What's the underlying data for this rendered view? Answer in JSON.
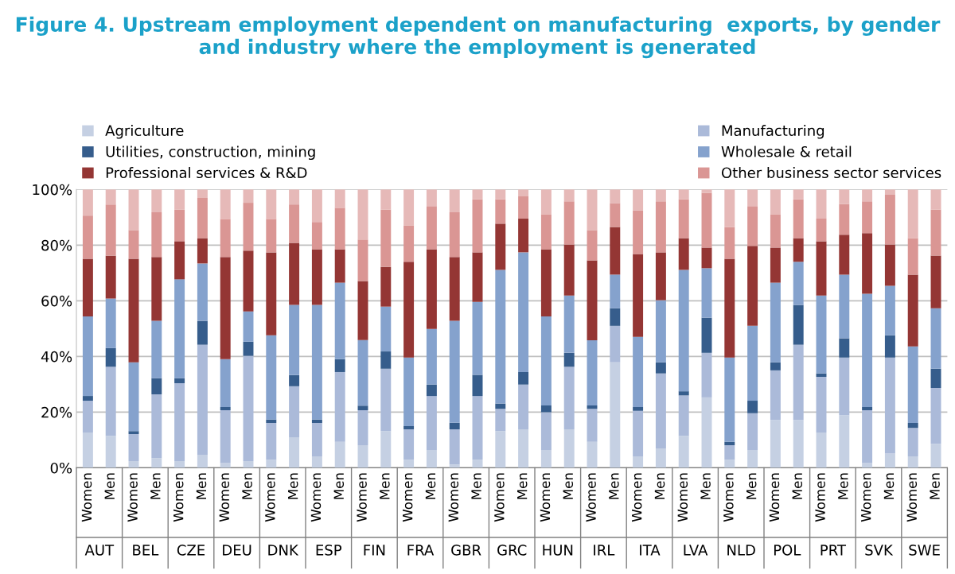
{
  "chart_data": {
    "type": "bar",
    "stacked": true,
    "title": "Figure 4. Upstream employment dependent on manufacturing  exports, by gender and industry where the employment is generated",
    "categories": [
      "Women",
      "Men",
      "Women",
      "Men",
      "Women",
      "Men",
      "Women",
      "Men",
      "Women",
      "Men",
      "Women",
      "Men",
      "Women",
      "Men",
      "Women",
      "Men",
      "Women",
      "Men",
      "Women",
      "Men",
      "Women",
      "Men",
      "Women",
      "Men",
      "Women",
      "Men",
      "Women",
      "Men",
      "Women",
      "Men",
      "Women",
      "Men",
      "Women",
      "Men",
      "Women",
      "Men",
      "Women",
      "Men"
    ],
    "annotations": [
      "AUT",
      "BEL",
      "CZE",
      "DEU",
      "DNK",
      "ESP",
      "FIN",
      "FRA",
      "GBR",
      "GRC",
      "HUN",
      "IRL",
      "ITA",
      "LVA",
      "NLD",
      "POL",
      "PRT",
      "SVK",
      "SWE"
    ],
    "series": [
      {
        "name": "Agriculture",
        "color": "#c5d0e3",
        "values": [
          12.7,
          11.5,
          2.4,
          3.5,
          2.4,
          4.7,
          1.7,
          2.4,
          2.9,
          11.0,
          4.1,
          9.3,
          8.1,
          13.2,
          2.9,
          6.4,
          1.2,
          2.9,
          13.2,
          13.8,
          6.4,
          13.8,
          9.3,
          37.9,
          4.1,
          7.0,
          11.5,
          25.3,
          2.9,
          6.4,
          17.2,
          17.2,
          12.7,
          18.9,
          1.7,
          5.1,
          4.1,
          8.6
        ]
      },
      {
        "name": "Manufacturing",
        "color": "#abbad9",
        "values": [
          11.4,
          24.8,
          9.7,
          22.9,
          28.0,
          39.5,
          19.0,
          37.8,
          13.2,
          18.3,
          12.0,
          25.1,
          12.6,
          22.4,
          10.9,
          19.4,
          12.6,
          22.9,
          8.0,
          16.1,
          13.6,
          22.5,
          11.9,
          13.1,
          16.4,
          26.9,
          14.5,
          16.0,
          5.2,
          13.2,
          17.8,
          27.0,
          20.0,
          20.7,
          19.0,
          34.5,
          10.2,
          20.1
        ]
      },
      {
        "name": "Utilities, construction, mining",
        "color": "#365d8c",
        "values": [
          1.7,
          6.7,
          1.1,
          5.8,
          1.8,
          8.6,
          1.1,
          5.1,
          1.2,
          4.0,
          1.2,
          4.6,
          1.6,
          6.2,
          1.2,
          4.1,
          2.4,
          7.6,
          1.9,
          4.5,
          2.4,
          5.0,
          1.2,
          6.3,
          1.3,
          4.0,
          1.5,
          12.6,
          1.2,
          4.5,
          2.9,
          14.3,
          1.2,
          6.9,
          1.1,
          8.0,
          1.8,
          6.9
        ]
      },
      {
        "name": "Wholesale & retail",
        "color": "#85a2cd",
        "values": [
          28.6,
          17.8,
          24.7,
          20.6,
          35.5,
          20.6,
          17.2,
          10.9,
          30.3,
          25.2,
          41.2,
          27.5,
          23.6,
          16.1,
          24.6,
          20.0,
          36.6,
          26.2,
          48.0,
          43.0,
          32.0,
          20.6,
          23.4,
          12.1,
          25.2,
          22.3,
          43.6,
          17.8,
          30.3,
          26.9,
          28.6,
          15.5,
          28.0,
          22.9,
          40.7,
          17.8,
          27.5,
          21.7
        ]
      },
      {
        "name": "Professional services & R&D",
        "color": "#943634",
        "values": [
          20.7,
          15.4,
          37.2,
          22.9,
          13.7,
          9.1,
          36.7,
          21.8,
          29.8,
          22.3,
          20.0,
          12.0,
          21.2,
          14.3,
          34.4,
          28.6,
          22.9,
          17.8,
          16.6,
          12.1,
          24.1,
          18.3,
          28.7,
          17.1,
          29.8,
          17.2,
          11.4,
          7.4,
          35.5,
          28.7,
          12.6,
          8.5,
          19.5,
          14.3,
          21.8,
          14.8,
          25.8,
          18.9
        ]
      },
      {
        "name": "Other business sector services",
        "color": "#da9694",
        "values": [
          15.5,
          18.4,
          10.3,
          16.1,
          11.4,
          14.4,
          13.7,
          17.2,
          12.0,
          13.8,
          9.8,
          14.9,
          14.9,
          20.6,
          13.1,
          15.5,
          16.1,
          19.0,
          8.7,
          8.0,
          12.6,
          15.5,
          10.9,
          8.6,
          15.6,
          18.3,
          13.9,
          19.7,
          11.4,
          14.3,
          12.0,
          13.9,
          8.1,
          11.0,
          11.4,
          17.9,
          13.1,
          16.6
        ]
      },
      {
        "color": "#e6b9b8",
        "values": [
          9.4,
          5.4,
          14.6,
          8.2,
          7.2,
          3.1,
          10.6,
          4.8,
          10.6,
          5.4,
          11.7,
          6.6,
          18.0,
          7.2,
          12.9,
          6.0,
          8.2,
          3.6,
          3.6,
          2.5,
          8.9,
          4.3,
          14.6,
          4.9,
          7.6,
          4.3,
          3.6,
          1.2,
          13.5,
          6.0,
          8.9,
          3.6,
          10.5,
          5.3,
          4.3,
          1.9,
          17.5,
          7.2
        ]
      }
    ],
    "ylim": [
      0,
      100
    ],
    "yticks": [
      {
        "value": 0,
        "label": "0%"
      },
      {
        "value": 20,
        "label": "20%"
      },
      {
        "value": 40,
        "label": "40%"
      },
      {
        "value": 60,
        "label": "60%"
      },
      {
        "value": 80,
        "label": "80%"
      },
      {
        "value": 100,
        "label": "100%"
      }
    ],
    "grid": "y",
    "legend": "top"
  }
}
